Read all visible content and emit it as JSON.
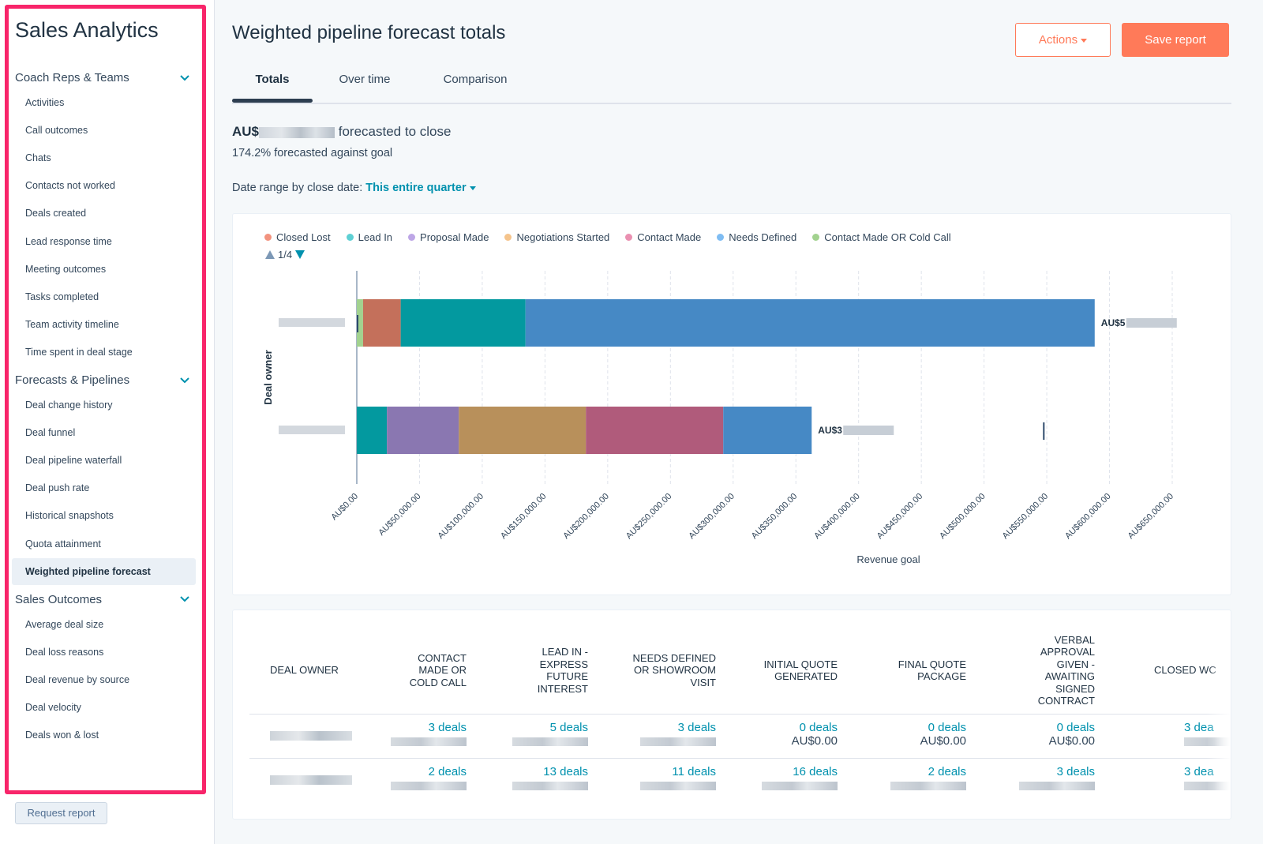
{
  "sidebar": {
    "title": "Sales Analytics",
    "groups": [
      {
        "label": "Coach Reps & Teams",
        "items": [
          "Activities",
          "Call outcomes",
          "Chats",
          "Contacts not worked",
          "Deals created",
          "Lead response time",
          "Meeting outcomes",
          "Tasks completed",
          "Team activity timeline",
          "Time spent in deal stage"
        ]
      },
      {
        "label": "Forecasts & Pipelines",
        "items": [
          "Deal change history",
          "Deal funnel",
          "Deal pipeline waterfall",
          "Deal push rate",
          "Historical snapshots",
          "Quota attainment",
          "Weighted pipeline forecast"
        ]
      },
      {
        "label": "Sales Outcomes",
        "items": [
          "Average deal size",
          "Deal loss reasons",
          "Deal revenue by source",
          "Deal velocity",
          "Deals won & lost"
        ]
      }
    ],
    "active_item": "Weighted pipeline forecast",
    "request_button": "Request report"
  },
  "header": {
    "title": "Weighted pipeline forecast totals",
    "actions_label": "Actions",
    "save_label": "Save report"
  },
  "tabs": [
    "Totals",
    "Over time",
    "Comparison"
  ],
  "active_tab": "Totals",
  "summary": {
    "currency_prefix": "AU$",
    "forecast_suffix": "forecasted to close",
    "goal_text": "174.2% forecasted against goal",
    "date_range_label": "Date range by close date:",
    "date_range_value": "This entire quarter"
  },
  "legend_pager": "1/4",
  "colors": {
    "accent": "#ff7a59",
    "link": "#0091ae",
    "sidebar_highlight": "#f8256a"
  },
  "chart_data": {
    "type": "bar",
    "orientation": "horizontal-stacked",
    "xlabel": "Revenue goal",
    "ylabel": "Deal owner",
    "xlim": [
      0,
      650000
    ],
    "x_ticks": [
      "AU$0.00",
      "AU$50,000.00",
      "AU$100,000.00",
      "AU$150,000.00",
      "AU$200,000.00",
      "AU$250,000.00",
      "AU$300,000.00",
      "AU$350,000.00",
      "AU$400,000.00",
      "AU$450,000.00",
      "AU$500,000.00",
      "AU$550,000.00",
      "AU$600,000.00",
      "AU$650,000.00"
    ],
    "grid": true,
    "legend": [
      {
        "name": "Closed Lost",
        "color": "#f2937f"
      },
      {
        "name": "Lead In",
        "color": "#5ed0d4"
      },
      {
        "name": "Proposal Made",
        "color": "#bda6e6"
      },
      {
        "name": "Negotiations Started",
        "color": "#f5c48c"
      },
      {
        "name": "Contact Made",
        "color": "#ea90b1"
      },
      {
        "name": "Needs Defined",
        "color": "#7fbdf3"
      },
      {
        "name": "Contact Made OR Cold Call",
        "color": "#a2d28f"
      }
    ],
    "categories": [
      "(redacted owner 1)",
      "(redacted owner 2)"
    ],
    "rows": [
      {
        "segments": [
          {
            "series": "Contact Made OR Cold Call",
            "value": 5000,
            "color": "#a2d28f"
          },
          {
            "series": "Closed Lost",
            "value": 30000,
            "color": "#c4705b"
          },
          {
            "series": "Lead In",
            "value": 99500,
            "color": "#03999f"
          },
          {
            "series": "Needs Defined",
            "value": 453700,
            "color": "#4689c5"
          }
        ],
        "total_label": "AU$5",
        "goal": 0
      },
      {
        "segments": [
          {
            "series": "Lead In",
            "value": 24000,
            "color": "#03999f"
          },
          {
            "series": "Proposal Made",
            "value": 57300,
            "color": "#8a77b1"
          },
          {
            "series": "Negotiations Started",
            "value": 101300,
            "color": "#b8905b"
          },
          {
            "series": "Contact Made",
            "value": 109500,
            "color": "#b05b7b"
          },
          {
            "series": "Needs Defined",
            "value": 70500,
            "color": "#4689c5"
          }
        ],
        "total_label": "AU$3",
        "goal": 547000
      }
    ]
  },
  "table": {
    "columns": [
      "Deal owner",
      "Contact made or cold call",
      "Lead in - express future interest",
      "Needs defined or showroom visit",
      "Initial quote generated",
      "Final quote package",
      "Verbal approval given - awaiting signed contract",
      "Closed wo"
    ],
    "column_lines": [
      [
        "DEAL OWNER"
      ],
      [
        "CONTACT",
        "MADE OR",
        "COLD CALL"
      ],
      [
        "LEAD IN -",
        "EXPRESS",
        "FUTURE",
        "INTEREST"
      ],
      [
        "NEEDS DEFINED",
        "OR SHOWROOM",
        "VISIT"
      ],
      [
        "INITIAL QUOTE",
        "GENERATED"
      ],
      [
        "FINAL QUOTE",
        "PACKAGE"
      ],
      [
        "VERBAL",
        "APPROVAL",
        "GIVEN -",
        "AWAITING",
        "SIGNED",
        "CONTRACT"
      ],
      [
        "CLOSED WC"
      ]
    ],
    "rows": [
      {
        "cells": [
          {
            "deals": "3 deals",
            "amount": null
          },
          {
            "deals": "5 deals",
            "amount": null
          },
          {
            "deals": "3 deals",
            "amount": null
          },
          {
            "deals": "0 deals",
            "amount": "AU$0.00"
          },
          {
            "deals": "0 deals",
            "amount": "AU$0.00"
          },
          {
            "deals": "0 deals",
            "amount": "AU$0.00"
          },
          {
            "deals": "3 dea",
            "amount": null
          }
        ]
      },
      {
        "cells": [
          {
            "deals": "2 deals",
            "amount": null
          },
          {
            "deals": "13 deals",
            "amount": null
          },
          {
            "deals": "11 deals",
            "amount": null
          },
          {
            "deals": "16 deals",
            "amount": null
          },
          {
            "deals": "2 deals",
            "amount": null
          },
          {
            "deals": "3 deals",
            "amount": null
          },
          {
            "deals": "3 dea",
            "amount": null
          }
        ]
      }
    ]
  }
}
